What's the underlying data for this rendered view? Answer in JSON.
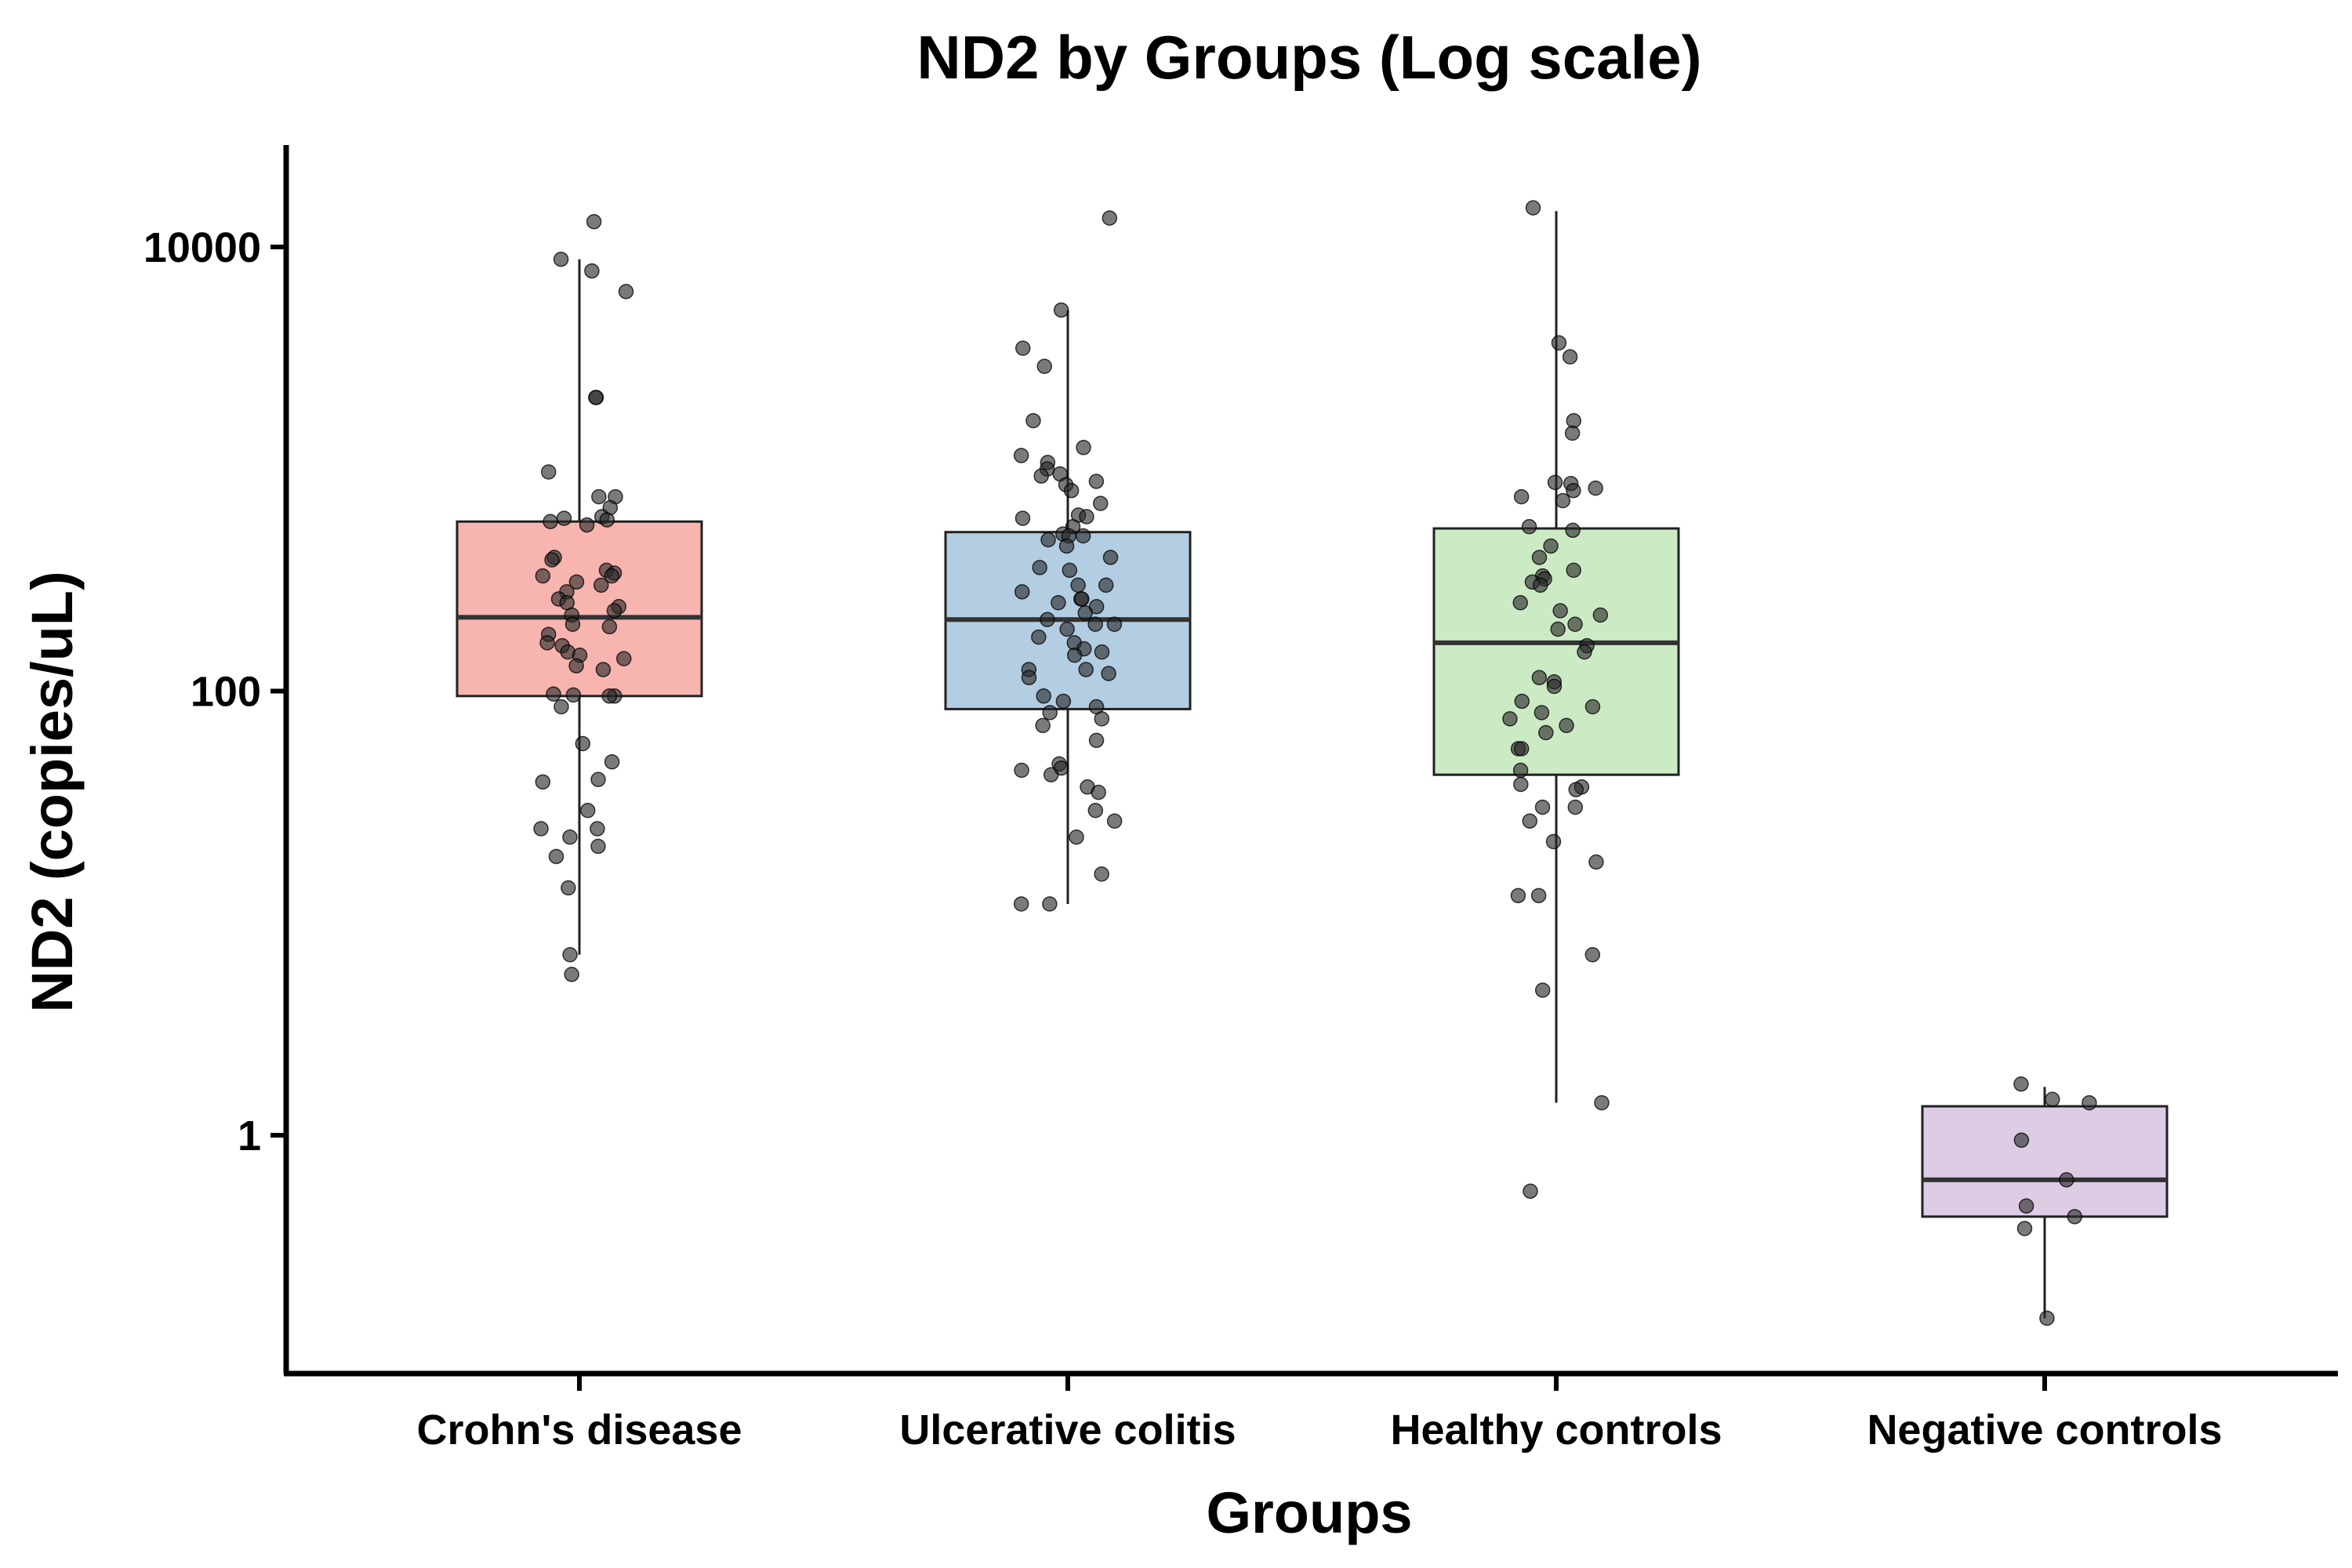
{
  "chart_data": {
    "type": "box",
    "title": "ND2 by Groups (Log scale)",
    "xlabel": "Groups",
    "ylabel": "ND2 (copies/uL)",
    "yscale": "log10",
    "ylim": [
      0.1,
      25000
    ],
    "yticks": [
      {
        "value": 1,
        "label": "1"
      },
      {
        "value": 100,
        "label": "100"
      },
      {
        "value": 10000,
        "label": "10000"
      }
    ],
    "grid": false,
    "legend": "none",
    "categories": [
      "Crohn's disease",
      "Ulcerative colitis",
      "Healthy controls",
      "Negative controls"
    ],
    "boxes": [
      {
        "category": "Crohn's disease",
        "color": "#F8B4AF",
        "whisker_low": 6.5,
        "q1": 95,
        "median": 215,
        "q3": 580,
        "whisker_high": 8800
      },
      {
        "category": "Ulcerative colitis",
        "color": "#B3CDE3",
        "whisker_low": 11,
        "q1": 83,
        "median": 210,
        "q3": 520,
        "whisker_high": 5200
      },
      {
        "category": "Healthy controls",
        "color": "#CCEBC5",
        "whisker_low": 1.4,
        "q1": 42,
        "median": 165,
        "q3": 540,
        "whisker_high": 14500
      },
      {
        "category": "Negative controls",
        "color": "#DECBE4",
        "whisker_low": 0.15,
        "q1": 0.43,
        "median": 0.63,
        "q3": 1.35,
        "whisker_high": 1.65
      }
    ],
    "points": [
      {
        "category": "Crohn's disease",
        "values": [
          13000,
          8800,
          7800,
          6300,
          2100,
          2100,
          970,
          750,
          750,
          670,
          610,
          600,
          590,
          580,
          560,
          400,
          390,
          350,
          340,
          330,
          330,
          310,
          300,
          280,
          260,
          250,
          240,
          230,
          220,
          200,
          195,
          180,
          165,
          160,
          150,
          145,
          140,
          130,
          125,
          97,
          96,
          95,
          95,
          85,
          58,
          48,
          40,
          39,
          29,
          24,
          24,
          22,
          20,
          18,
          13,
          6.5,
          5.3
        ]
      },
      {
        "category": "Ulcerative colitis",
        "values": [
          13500,
          5200,
          3500,
          2900,
          1650,
          1250,
          1150,
          1070,
          1000,
          950,
          930,
          880,
          850,
          800,
          700,
          620,
          610,
          600,
          550,
          510,
          500,
          500,
          480,
          450,
          400,
          360,
          350,
          300,
          300,
          280,
          260,
          260,
          250,
          240,
          225,
          210,
          200,
          200,
          190,
          175,
          165,
          155,
          150,
          145,
          125,
          125,
          120,
          115,
          95,
          90,
          85,
          80,
          75,
          70,
          60,
          47,
          45,
          44,
          42,
          37,
          35,
          29,
          26,
          22,
          15,
          11,
          11
        ]
      },
      {
        "category": "Healthy controls",
        "values": [
          15000,
          3700,
          3200,
          1650,
          1450,
          870,
          860,
          820,
          800,
          750,
          720,
          550,
          530,
          450,
          400,
          350,
          330,
          320,
          310,
          300,
          250,
          230,
          220,
          200,
          190,
          160,
          150,
          115,
          110,
          105,
          90,
          85,
          80,
          75,
          70,
          65,
          55,
          55,
          44,
          38,
          37,
          36,
          30,
          30,
          26,
          21,
          17,
          12,
          12,
          6.5,
          4.5,
          1.4,
          0.56
        ]
      },
      {
        "category": "Negative controls",
        "values": [
          1.7,
          1.45,
          1.4,
          0.95,
          0.63,
          0.48,
          0.43,
          0.38,
          0.15
        ]
      }
    ]
  }
}
